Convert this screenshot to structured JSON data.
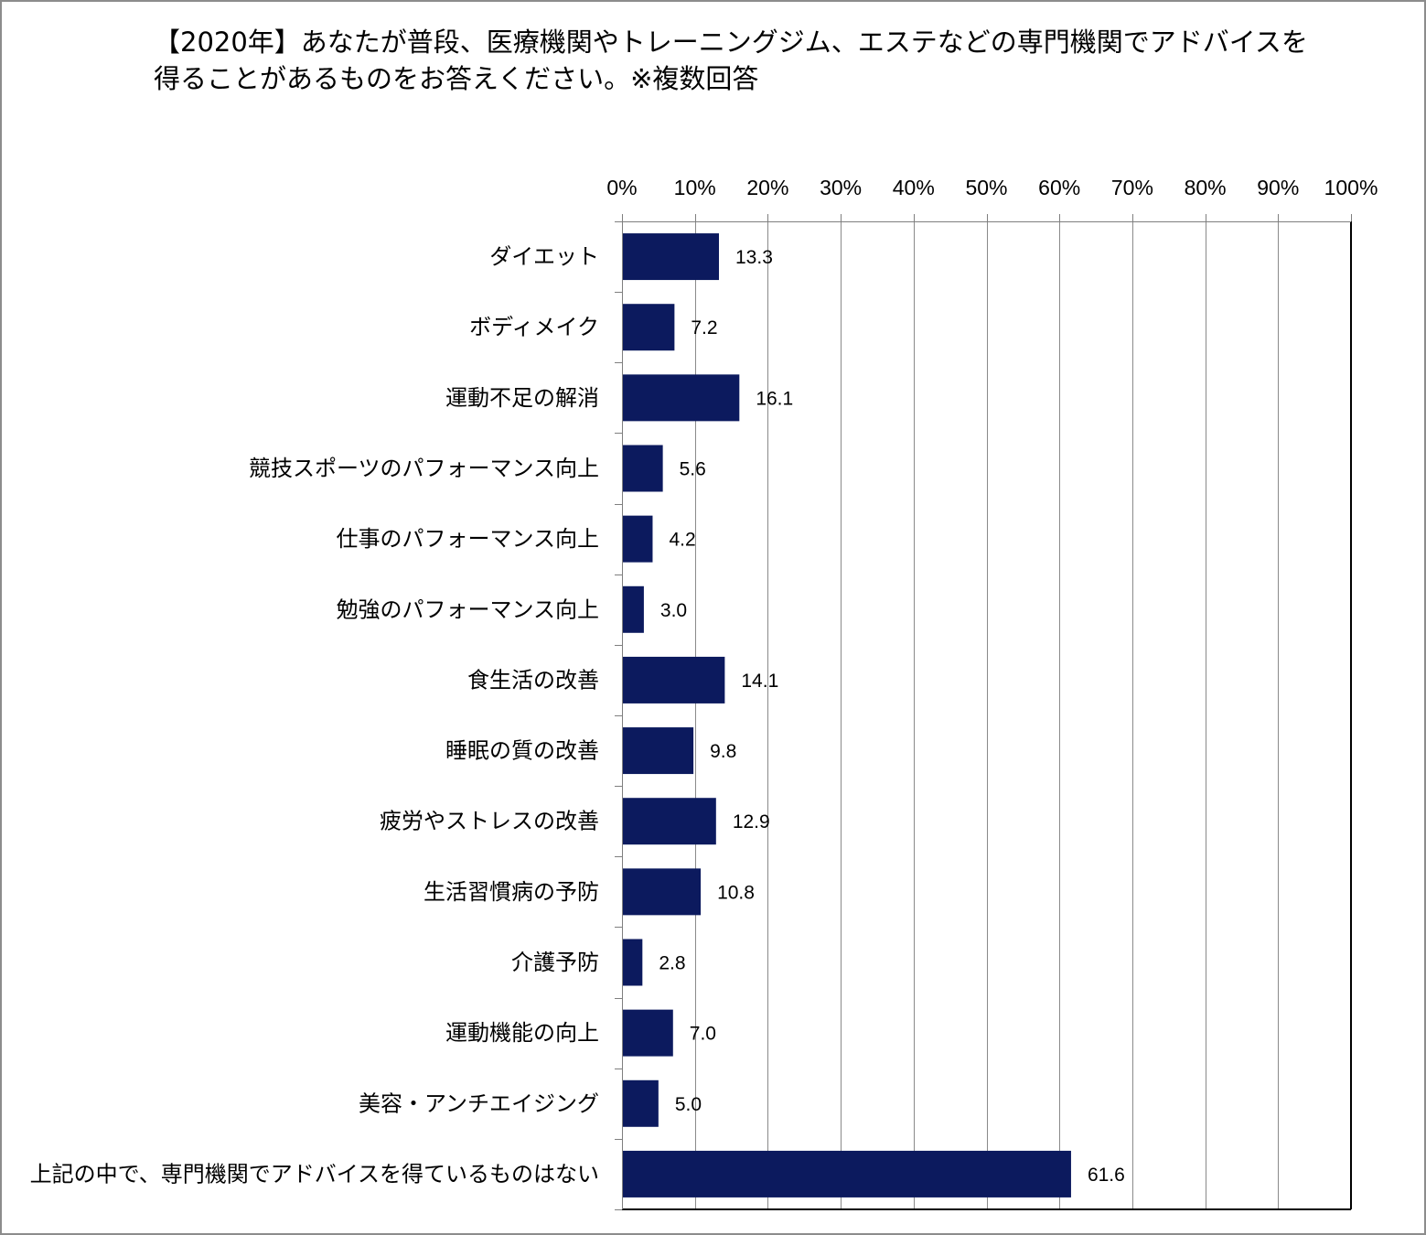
{
  "chart_data": {
    "type": "bar",
    "orientation": "horizontal",
    "title_lines": [
      "【2020年】あなたが普段、医療機関やトレーニングジム、エステなどの専門機関でアドバイスを",
      "得ることがあるものをお答えください。※複数回答"
    ],
    "categories": [
      "ダイエット",
      "ボディメイク",
      "運動不足の解消",
      "競技スポーツのパフォーマンス向上",
      "仕事のパフォーマンス向上",
      "勉強のパフォーマンス向上",
      "食生活の改善",
      "睡眠の質の改善",
      "疲労やストレスの改善",
      "生活習慣病の予防",
      "介護予防",
      "運動機能の向上",
      "美容・アンチエイジング",
      "上記の中で、専門機関でアドバイスを得ているものはない"
    ],
    "values": [
      13.3,
      7.2,
      16.1,
      5.6,
      4.2,
      3.0,
      14.1,
      9.8,
      12.9,
      10.8,
      2.8,
      7.0,
      5.0,
      61.6
    ],
    "data_labels": [
      "13.3",
      "7.2",
      "16.1",
      "5.6",
      "4.2",
      "3.0",
      "14.1",
      "9.8",
      "12.9",
      "10.8",
      "2.8",
      "7.0",
      "5.0",
      "61.6"
    ],
    "xlim": [
      0,
      100
    ],
    "x_ticks": [
      0,
      10,
      20,
      30,
      40,
      50,
      60,
      70,
      80,
      90,
      100
    ],
    "x_tick_labels": [
      "0%",
      "10%",
      "20%",
      "30%",
      "40%",
      "50%",
      "60%",
      "70%",
      "80%",
      "90%",
      "100%"
    ],
    "x_axis_position": "top",
    "grid": true,
    "legend": "none",
    "colors": {
      "bar": "#0c1a5e"
    }
  }
}
